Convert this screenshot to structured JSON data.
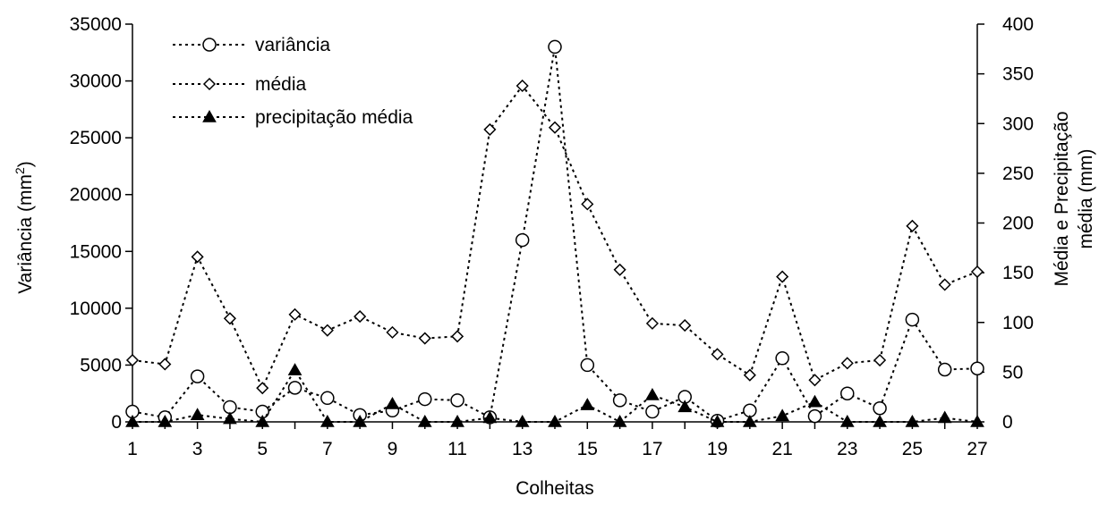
{
  "chart_data": {
    "type": "line",
    "x": [
      1,
      2,
      3,
      4,
      5,
      6,
      7,
      8,
      9,
      10,
      11,
      12,
      13,
      14,
      15,
      16,
      17,
      18,
      19,
      20,
      21,
      22,
      23,
      24,
      25,
      26,
      27
    ],
    "x_tick_labels": [
      "1",
      "3",
      "5",
      "7",
      "9",
      "11",
      "13",
      "15",
      "17",
      "19",
      "21",
      "23",
      "25",
      "27"
    ],
    "x_ticks": [
      1,
      3,
      5,
      7,
      9,
      11,
      13,
      15,
      17,
      19,
      21,
      23,
      25,
      27
    ],
    "xlabel": "Colheitas",
    "xlim": [
      1,
      27
    ],
    "ylabel_left": {
      "main": "Variância (mm",
      "sup": "2",
      "end": ")"
    },
    "ylim_left": [
      0,
      35000
    ],
    "yticks_left": [
      0,
      5000,
      10000,
      15000,
      20000,
      25000,
      30000,
      35000
    ],
    "ylabel_right_line1": "Média e Precipitação",
    "ylabel_right_line2": "média (mm)",
    "ylim_right": [
      0,
      400
    ],
    "yticks_right": [
      0,
      50,
      100,
      150,
      200,
      250,
      300,
      350,
      400
    ],
    "legend_position": "top-left",
    "series": [
      {
        "name": "variância",
        "axis": "left",
        "marker": "circle",
        "values": [
          900,
          400,
          4000,
          1300,
          900,
          3000,
          2100,
          600,
          1000,
          2000,
          1900,
          400,
          16000,
          33000,
          5000,
          1900,
          900,
          2200,
          100,
          1000,
          5600,
          500,
          2500,
          1200,
          9000,
          4600,
          4700
        ]
      },
      {
        "name": "média",
        "axis": "right",
        "marker": "diamond",
        "values": [
          62,
          58,
          166,
          104,
          34,
          108,
          92,
          106,
          90,
          84,
          86,
          294,
          338,
          296,
          219,
          153,
          99,
          97,
          68,
          47,
          146,
          42,
          59,
          62,
          197,
          138,
          151
        ]
      },
      {
        "name": "precipitação média",
        "axis": "right",
        "marker": "triangle",
        "values": [
          0,
          0,
          7,
          3,
          0,
          52,
          0,
          0,
          18,
          0,
          0,
          4,
          0,
          0,
          17,
          0,
          27,
          15,
          0,
          0,
          6,
          20,
          0,
          0,
          0,
          4,
          0
        ]
      }
    ]
  }
}
